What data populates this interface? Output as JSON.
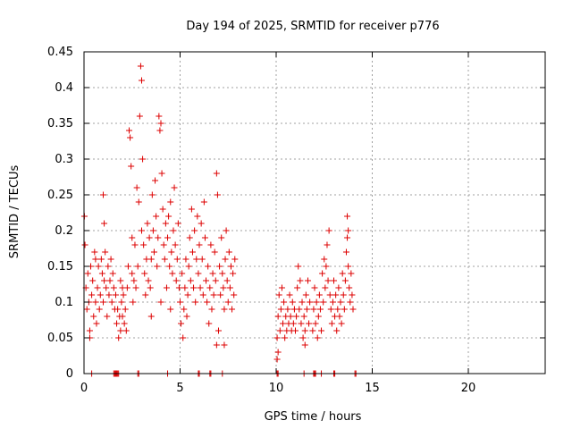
{
  "chart_data": {
    "type": "scatter",
    "title": "Day 194 of 2025, SRMTID for receiver p776",
    "xlabel": "GPS time / hours",
    "ylabel": "SRMTID / TECUs",
    "xlim": [
      0,
      24
    ],
    "ylim": [
      0,
      0.45
    ],
    "xticks": [
      0,
      5,
      10,
      15,
      20
    ],
    "xtick_labels": [
      "0",
      "5",
      "10",
      "15",
      "20"
    ],
    "yticks": [
      0,
      0.05,
      0.1,
      0.15,
      0.2,
      0.25,
      0.3,
      0.35,
      0.4,
      0.45
    ],
    "ytick_labels": [
      "0",
      "0.05",
      "0.1",
      "0.15",
      "0.2",
      "0.25",
      "0.3",
      "0.35",
      "0.4",
      "0.45"
    ],
    "grid": true,
    "marker": "+",
    "color": "#dd0000",
    "series": [
      {
        "name": "SRMTID",
        "points": [
          [
            0.02,
            0.22
          ],
          [
            0.05,
            0.18
          ],
          [
            0.1,
            0.12
          ],
          [
            0.15,
            0.09
          ],
          [
            0.2,
            0.14
          ],
          [
            0.25,
            0.1
          ],
          [
            0.3,
            0.06
          ],
          [
            0.35,
            0.15
          ],
          [
            0.4,
            0.11
          ],
          [
            0.45,
            0.13
          ],
          [
            0.5,
            0.08
          ],
          [
            0.55,
            0.17
          ],
          [
            0.6,
            0.1
          ],
          [
            0.65,
            0.07
          ],
          [
            0.7,
            0.12
          ],
          [
            0.75,
            0.15
          ],
          [
            0.8,
            0.09
          ],
          [
            0.85,
            0.11
          ],
          [
            0.9,
            0.16
          ],
          [
            0.95,
            0.14
          ],
          [
            1.0,
            0.1
          ],
          [
            1.05,
            0.13
          ],
          [
            1.1,
            0.17
          ],
          [
            1.15,
            0.12
          ],
          [
            1.2,
            0.08
          ],
          [
            1.25,
            0.15
          ],
          [
            1.3,
            0.11
          ],
          [
            1.35,
            0.13
          ],
          [
            1.4,
            0.16
          ],
          [
            1.45,
            0.1
          ],
          [
            1.5,
            0.14
          ],
          [
            1.55,
            0.12
          ],
          [
            1.6,
            0.09
          ],
          [
            1.65,
            0.11
          ],
          [
            1.0,
            0.25
          ],
          [
            1.05,
            0.21
          ],
          [
            0.3,
            0.05
          ],
          [
            0.6,
            0.16
          ],
          [
            1.7,
            0.07
          ],
          [
            1.75,
            0.09
          ],
          [
            1.8,
            0.05
          ],
          [
            1.85,
            0.08
          ],
          [
            1.9,
            0.06
          ],
          [
            1.95,
            0.1
          ],
          [
            2.0,
            0.08
          ],
          [
            2.05,
            0.11
          ],
          [
            2.1,
            0.07
          ],
          [
            2.15,
            0.09
          ],
          [
            2.2,
            0.06
          ],
          [
            2.0,
            0.12
          ],
          [
            1.9,
            0.13
          ],
          [
            2.25,
            0.12
          ],
          [
            2.3,
            0.15
          ],
          [
            2.35,
            0.34
          ],
          [
            2.4,
            0.33
          ],
          [
            2.45,
            0.29
          ],
          [
            2.5,
            0.14
          ],
          [
            2.55,
            0.1
          ],
          [
            2.6,
            0.13
          ],
          [
            2.65,
            0.18
          ],
          [
            2.7,
            0.12
          ],
          [
            2.75,
            0.26
          ],
          [
            2.8,
            0.15
          ],
          [
            2.85,
            0.24
          ],
          [
            2.9,
            0.36
          ],
          [
            2.95,
            0.43
          ],
          [
            3.0,
            0.41
          ],
          [
            3.05,
            0.3
          ],
          [
            3.1,
            0.18
          ],
          [
            3.15,
            0.14
          ],
          [
            3.2,
            0.11
          ],
          [
            3.25,
            0.16
          ],
          [
            3.3,
            0.21
          ],
          [
            3.35,
            0.13
          ],
          [
            3.4,
            0.19
          ],
          [
            3.45,
            0.12
          ],
          [
            3.5,
            0.16
          ],
          [
            3.55,
            0.25
          ],
          [
            3.6,
            0.2
          ],
          [
            3.65,
            0.17
          ],
          [
            3.7,
            0.27
          ],
          [
            3.75,
            0.22
          ],
          [
            3.8,
            0.15
          ],
          [
            3.85,
            0.19
          ],
          [
            3.9,
            0.36
          ],
          [
            3.95,
            0.34
          ],
          [
            4.0,
            0.35
          ],
          [
            4.05,
            0.28
          ],
          [
            4.1,
            0.23
          ],
          [
            4.15,
            0.18
          ],
          [
            4.2,
            0.16
          ],
          [
            4.25,
            0.21
          ],
          [
            4.3,
            0.12
          ],
          [
            4.35,
            0.19
          ],
          [
            4.4,
            0.22
          ],
          [
            4.45,
            0.15
          ],
          [
            4.5,
            0.24
          ],
          [
            4.55,
            0.17
          ],
          [
            4.6,
            0.14
          ],
          [
            4.65,
            0.2
          ],
          [
            4.7,
            0.26
          ],
          [
            4.75,
            0.18
          ],
          [
            4.8,
            0.13
          ],
          [
            4.85,
            0.16
          ],
          [
            4.9,
            0.21
          ],
          [
            4.95,
            0.12
          ],
          [
            2.5,
            0.19
          ],
          [
            3.0,
            0.2
          ],
          [
            3.5,
            0.08
          ],
          [
            4.0,
            0.1
          ],
          [
            4.5,
            0.09
          ],
          [
            5.0,
            0.1
          ],
          [
            5.05,
            0.07
          ],
          [
            5.1,
            0.14
          ],
          [
            5.15,
            0.05
          ],
          [
            5.2,
            0.09
          ],
          [
            5.25,
            0.12
          ],
          [
            5.3,
            0.16
          ],
          [
            5.35,
            0.08
          ],
          [
            5.4,
            0.11
          ],
          [
            5.45,
            0.15
          ],
          [
            5.5,
            0.19
          ],
          [
            5.55,
            0.13
          ],
          [
            5.6,
            0.23
          ],
          [
            5.65,
            0.17
          ],
          [
            5.7,
            0.12
          ],
          [
            5.75,
            0.2
          ],
          [
            5.8,
            0.1
          ],
          [
            5.85,
            0.16
          ],
          [
            5.9,
            0.22
          ],
          [
            5.95,
            0.14
          ],
          [
            6.0,
            0.18
          ],
          [
            6.05,
            0.12
          ],
          [
            6.1,
            0.21
          ],
          [
            6.15,
            0.16
          ],
          [
            6.2,
            0.11
          ],
          [
            6.25,
            0.24
          ],
          [
            6.3,
            0.19
          ],
          [
            6.35,
            0.13
          ],
          [
            6.4,
            0.1
          ],
          [
            6.45,
            0.15
          ],
          [
            6.5,
            0.07
          ],
          [
            6.55,
            0.12
          ],
          [
            6.6,
            0.18
          ],
          [
            6.65,
            0.09
          ],
          [
            6.7,
            0.14
          ],
          [
            6.75,
            0.11
          ],
          [
            6.8,
            0.17
          ],
          [
            6.85,
            0.13
          ],
          [
            6.9,
            0.28
          ],
          [
            6.95,
            0.25
          ],
          [
            7.0,
            0.06
          ],
          [
            7.05,
            0.15
          ],
          [
            7.1,
            0.11
          ],
          [
            7.15,
            0.19
          ],
          [
            7.2,
            0.14
          ],
          [
            7.25,
            0.12
          ],
          [
            7.3,
            0.09
          ],
          [
            7.35,
            0.16
          ],
          [
            7.4,
            0.2
          ],
          [
            7.45,
            0.13
          ],
          [
            7.5,
            0.1
          ],
          [
            7.55,
            0.17
          ],
          [
            7.6,
            0.12
          ],
          [
            7.65,
            0.15
          ],
          [
            7.7,
            0.09
          ],
          [
            7.75,
            0.14
          ],
          [
            7.8,
            0.11
          ],
          [
            7.85,
            0.16
          ],
          [
            6.9,
            0.04
          ],
          [
            7.3,
            0.04
          ],
          [
            10.05,
            0.05
          ],
          [
            10.1,
            0.08
          ],
          [
            10.15,
            0.11
          ],
          [
            10.2,
            0.06
          ],
          [
            10.25,
            0.09
          ],
          [
            10.3,
            0.12
          ],
          [
            10.35,
            0.07
          ],
          [
            10.4,
            0.1
          ],
          [
            10.45,
            0.05
          ],
          [
            10.5,
            0.08
          ],
          [
            10.55,
            0.06
          ],
          [
            10.6,
            0.09
          ],
          [
            10.65,
            0.07
          ],
          [
            10.7,
            0.11
          ],
          [
            10.75,
            0.08
          ],
          [
            10.8,
            0.06
          ],
          [
            10.85,
            0.1
          ],
          [
            10.9,
            0.07
          ],
          [
            10.95,
            0.09
          ],
          [
            11.0,
            0.06
          ],
          [
            11.05,
            0.08
          ],
          [
            11.1,
            0.12
          ],
          [
            11.15,
            0.15
          ],
          [
            11.2,
            0.09
          ],
          [
            11.25,
            0.13
          ],
          [
            11.3,
            0.07
          ],
          [
            11.35,
            0.1
          ],
          [
            11.4,
            0.05
          ],
          [
            11.45,
            0.08
          ],
          [
            11.5,
            0.06
          ],
          [
            11.55,
            0.11
          ],
          [
            11.6,
            0.09
          ],
          [
            11.65,
            0.13
          ],
          [
            11.7,
            0.07
          ],
          [
            11.75,
            0.1
          ],
          [
            10.05,
            0.02
          ],
          [
            10.1,
            0.03
          ],
          [
            11.5,
            0.04
          ],
          [
            11.9,
            0.06
          ],
          [
            11.95,
            0.09
          ],
          [
            12.0,
            0.12
          ],
          [
            12.05,
            0.07
          ],
          [
            12.1,
            0.1
          ],
          [
            12.15,
            0.05
          ],
          [
            12.2,
            0.08
          ],
          [
            12.25,
            0.11
          ],
          [
            12.3,
            0.09
          ],
          [
            12.35,
            0.06
          ],
          [
            12.4,
            0.14
          ],
          [
            12.45,
            0.1
          ],
          [
            12.5,
            0.16
          ],
          [
            12.55,
            0.12
          ],
          [
            12.6,
            0.15
          ],
          [
            12.65,
            0.18
          ],
          [
            12.7,
            0.13
          ],
          [
            12.75,
            0.2
          ],
          [
            12.8,
            0.11
          ],
          [
            12.85,
            0.09
          ],
          [
            12.9,
            0.07
          ],
          [
            12.95,
            0.1
          ],
          [
            13.0,
            0.13
          ],
          [
            13.05,
            0.08
          ],
          [
            13.1,
            0.11
          ],
          [
            13.15,
            0.06
          ],
          [
            13.2,
            0.09
          ],
          [
            13.25,
            0.12
          ],
          [
            13.3,
            0.08
          ],
          [
            13.35,
            0.1
          ],
          [
            13.4,
            0.07
          ],
          [
            13.45,
            0.14
          ],
          [
            13.5,
            0.11
          ],
          [
            13.55,
            0.09
          ],
          [
            13.6,
            0.13
          ],
          [
            13.65,
            0.17
          ],
          [
            13.7,
            0.19
          ],
          [
            13.75,
            0.15
          ],
          [
            13.8,
            0.12
          ],
          [
            13.85,
            0.1
          ],
          [
            13.9,
            0.14
          ],
          [
            13.95,
            0.11
          ],
          [
            14.0,
            0.09
          ],
          [
            13.7,
            0.22
          ],
          [
            13.75,
            0.2
          ]
        ]
      }
    ],
    "zero_points_x": [
      0.4,
      1.55,
      1.6,
      1.65,
      1.7,
      1.75,
      1.8,
      2.8,
      2.85,
      4.35,
      5.95,
      6.0,
      6.55,
      6.6,
      7.2,
      10.05,
      10.1,
      11.45,
      11.95,
      12.0,
      12.05,
      12.35,
      13.0,
      13.05,
      14.1,
      14.15
    ]
  }
}
